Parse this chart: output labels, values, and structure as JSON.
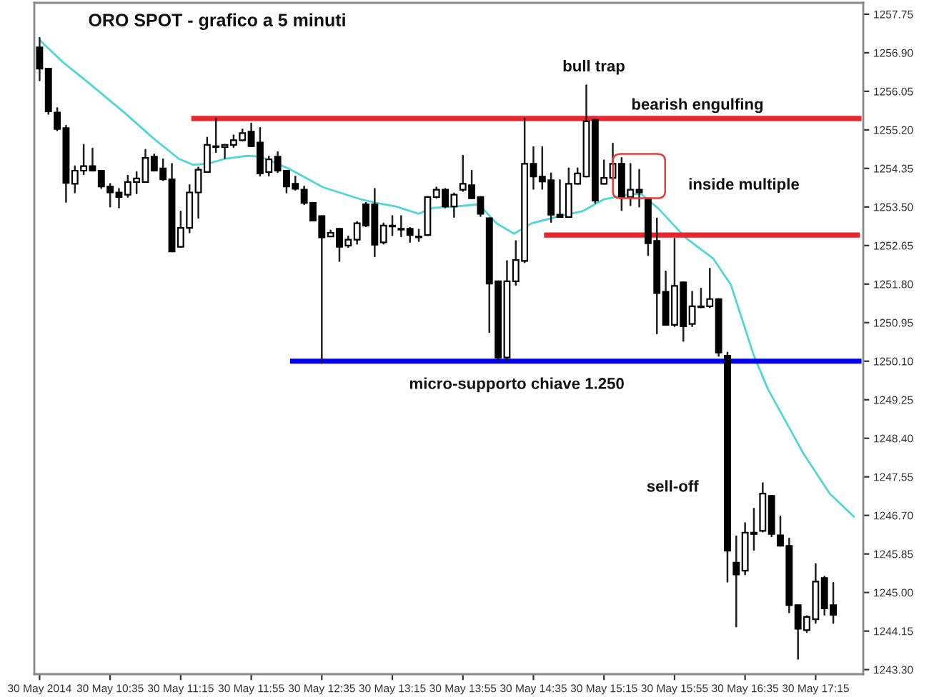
{
  "chart_data": {
    "type": "candlestick",
    "annotations": [
      "bull trap",
      "bearish engulfing",
      "inside multiple",
      "micro-supporto chiave 1.250",
      "sell-off"
    ],
    "title": "ORO SPOT - grafico a 5 minuti",
    "x": [
      "2014-05-30T09:55",
      "2014-05-30T10:00",
      "2014-05-30T10:05",
      "2014-05-30T10:10",
      "2014-05-30T10:15",
      "2014-05-30T10:20",
      "2014-05-30T10:25",
      "2014-05-30T10:30",
      "2014-05-30T10:35",
      "2014-05-30T10:40",
      "2014-05-30T10:45",
      "2014-05-30T10:50",
      "2014-05-30T10:55",
      "2014-05-30T11:00",
      "2014-05-30T11:05",
      "2014-05-30T11:10",
      "2014-05-30T11:15",
      "2014-05-30T11:20",
      "2014-05-30T11:25",
      "2014-05-30T11:30",
      "2014-05-30T11:35",
      "2014-05-30T11:40",
      "2014-05-30T11:45",
      "2014-05-30T11:50",
      "2014-05-30T11:55",
      "2014-05-30T12:00",
      "2014-05-30T12:05",
      "2014-05-30T12:10",
      "2014-05-30T12:15",
      "2014-05-30T12:20",
      "2014-05-30T12:25",
      "2014-05-30T12:30",
      "2014-05-30T12:35",
      "2014-05-30T12:40",
      "2014-05-30T12:45",
      "2014-05-30T12:50",
      "2014-05-30T12:55",
      "2014-05-30T13:00",
      "2014-05-30T13:05",
      "2014-05-30T13:10",
      "2014-05-30T13:15",
      "2014-05-30T13:20",
      "2014-05-30T13:25",
      "2014-05-30T13:30",
      "2014-05-30T13:35",
      "2014-05-30T13:40",
      "2014-05-30T13:45",
      "2014-05-30T13:50",
      "2014-05-30T13:55",
      "2014-05-30T14:00",
      "2014-05-30T14:05",
      "2014-05-30T14:10",
      "2014-05-30T14:15",
      "2014-05-30T14:20",
      "2014-05-30T14:25",
      "2014-05-30T14:30",
      "2014-05-30T14:35",
      "2014-05-30T14:40",
      "2014-05-30T14:45",
      "2014-05-30T14:50",
      "2014-05-30T14:55",
      "2014-05-30T15:00",
      "2014-05-30T15:05",
      "2014-05-30T15:10",
      "2014-05-30T15:15",
      "2014-05-30T15:20",
      "2014-05-30T15:25",
      "2014-05-30T15:30",
      "2014-05-30T15:35",
      "2014-05-30T15:40",
      "2014-05-30T15:45",
      "2014-05-30T15:50",
      "2014-05-30T15:55",
      "2014-05-30T16:00",
      "2014-05-30T16:05",
      "2014-05-30T16:10",
      "2014-05-30T16:15",
      "2014-05-30T16:20",
      "2014-05-30T16:25",
      "2014-05-30T16:30",
      "2014-05-30T16:35",
      "2014-05-30T16:40",
      "2014-05-30T16:45",
      "2014-05-30T16:50",
      "2014-05-30T16:55",
      "2014-05-30T17:00",
      "2014-05-30T17:05",
      "2014-05-30T17:10",
      "2014-05-30T17:15",
      "2014-05-30T17:20",
      "2014-05-30T17:25"
    ],
    "ohlc": [
      [
        1257.02,
        1257.23,
        1256.29,
        1256.55
      ],
      [
        1256.55,
        1256.55,
        1255.55,
        1255.61
      ],
      [
        1255.58,
        1255.68,
        1255.19,
        1255.22
      ],
      [
        1255.24,
        1255.29,
        1253.61,
        1254.03
      ],
      [
        1254.01,
        1254.4,
        1253.82,
        1254.3
      ],
      [
        1254.3,
        1254.87,
        1254.22,
        1254.4
      ],
      [
        1254.4,
        1254.79,
        1254.3,
        1254.3
      ],
      [
        1254.3,
        1254.3,
        1253.92,
        1253.95
      ],
      [
        1253.95,
        1254.01,
        1253.51,
        1253.82
      ],
      [
        1253.82,
        1253.9,
        1253.49,
        1253.72
      ],
      [
        1253.77,
        1254.19,
        1253.72,
        1254.05
      ],
      [
        1254.05,
        1254.27,
        1253.8,
        1254.13
      ],
      [
        1254.05,
        1254.76,
        1254.05,
        1254.58
      ],
      [
        1254.61,
        1254.66,
        1254.3,
        1254.3
      ],
      [
        1254.35,
        1254.55,
        1254.09,
        1254.11
      ],
      [
        1254.11,
        1254.45,
        1252.52,
        1252.52
      ],
      [
        1252.62,
        1253.4,
        1252.62,
        1253.04
      ],
      [
        1253.04,
        1253.98,
        1252.94,
        1253.82
      ],
      [
        1253.82,
        1254.37,
        1253.26,
        1254.32
      ],
      [
        1254.27,
        1255.03,
        1254.27,
        1254.87
      ],
      [
        1254.82,
        1255.45,
        1254.71,
        1254.84
      ],
      [
        1254.82,
        1254.87,
        1254.58,
        1254.87
      ],
      [
        1254.87,
        1255.08,
        1254.82,
        1254.97
      ],
      [
        1254.97,
        1255.21,
        1254.97,
        1255.13
      ],
      [
        1255.16,
        1255.34,
        1254.84,
        1254.84
      ],
      [
        1254.92,
        1255.24,
        1254.19,
        1254.24
      ],
      [
        1254.27,
        1254.61,
        1254.19,
        1254.55
      ],
      [
        1254.61,
        1254.71,
        1254.27,
        1254.3
      ],
      [
        1254.3,
        1254.3,
        1253.82,
        1253.95
      ],
      [
        1254.01,
        1254.17,
        1253.88,
        1253.9
      ],
      [
        1253.88,
        1253.95,
        1253.56,
        1253.59
      ],
      [
        1253.59,
        1253.59,
        1253.2,
        1253.2
      ],
      [
        1253.3,
        1253.3,
        1250.06,
        1252.83
      ],
      [
        1252.85,
        1252.98,
        1252.85,
        1252.93
      ],
      [
        1253.02,
        1253.02,
        1252.31,
        1252.62
      ],
      [
        1252.65,
        1252.85,
        1252.62,
        1252.78
      ],
      [
        1252.78,
        1253.17,
        1252.69,
        1253.14
      ],
      [
        1253.56,
        1253.59,
        1253.07,
        1253.09
      ],
      [
        1253.56,
        1253.9,
        1252.41,
        1252.67
      ],
      [
        1252.72,
        1253.14,
        1252.69,
        1253.09
      ],
      [
        1253.07,
        1253.3,
        1252.88,
        1253.09
      ],
      [
        1253.02,
        1253.3,
        1252.85,
        1253.0
      ],
      [
        1253.02,
        1253.04,
        1252.73,
        1252.88
      ],
      [
        1252.85,
        1253.0,
        1252.75,
        1252.83
      ],
      [
        1252.88,
        1253.72,
        1252.88,
        1253.72
      ],
      [
        1253.72,
        1253.93,
        1253.7,
        1253.88
      ],
      [
        1253.88,
        1253.9,
        1253.49,
        1253.51
      ],
      [
        1253.51,
        1253.8,
        1253.28,
        1253.77
      ],
      [
        1253.88,
        1254.63,
        1253.85,
        1254.01
      ],
      [
        1253.98,
        1254.3,
        1253.69,
        1253.69
      ],
      [
        1253.72,
        1253.72,
        1253.3,
        1253.35
      ],
      [
        1253.25,
        1253.25,
        1250.74,
        1251.81
      ],
      [
        1251.86,
        1251.86,
        1250.12,
        1250.18
      ],
      [
        1250.18,
        1252.31,
        1250.12,
        1251.86
      ],
      [
        1251.86,
        1252.75,
        1251.78,
        1252.33
      ],
      [
        1252.31,
        1255.45,
        1252.28,
        1254.45
      ],
      [
        1254.45,
        1254.82,
        1253.9,
        1254.17
      ],
      [
        1254.17,
        1254.82,
        1253.9,
        1254.06
      ],
      [
        1254.09,
        1254.24,
        1253.17,
        1253.33
      ],
      [
        1253.33,
        1254.09,
        1253.28,
        1253.28
      ],
      [
        1253.28,
        1254.35,
        1253.28,
        1254.01
      ],
      [
        1254.01,
        1254.35,
        1254.01,
        1254.24
      ],
      [
        1254.17,
        1256.18,
        1254.17,
        1255.39
      ],
      [
        1255.42,
        1255.42,
        1253.59,
        1253.64
      ],
      [
        1254.01,
        1254.53,
        1254.01,
        1254.14
      ],
      [
        1254.14,
        1254.9,
        1254.11,
        1254.45
      ],
      [
        1254.45,
        1254.58,
        1253.43,
        1253.72
      ],
      [
        1253.72,
        1254.45,
        1253.54,
        1253.88
      ],
      [
        1253.88,
        1254.32,
        1253.51,
        1253.82
      ],
      [
        1253.69,
        1253.69,
        1252.44,
        1252.7
      ],
      [
        1252.75,
        1253.25,
        1250.71,
        1251.6
      ],
      [
        1251.63,
        1252.08,
        1250.9,
        1250.9
      ],
      [
        1250.9,
        1252.8,
        1250.87,
        1251.76
      ],
      [
        1251.84,
        1251.84,
        1250.55,
        1250.87
      ],
      [
        1250.92,
        1251.63,
        1250.87,
        1251.31
      ],
      [
        1251.29,
        1251.7,
        1251.29,
        1251.31
      ],
      [
        1251.31,
        1252.14,
        1251.29,
        1251.47
      ],
      [
        1251.47,
        1251.47,
        1250.22,
        1250.29
      ],
      [
        1250.22,
        1250.29,
        1245.24,
        1245.92
      ],
      [
        1245.66,
        1246.24,
        1244.25,
        1245.4
      ],
      [
        1245.48,
        1246.53,
        1245.4,
        1246.32
      ],
      [
        1246.29,
        1246.85,
        1245.94,
        1246.32
      ],
      [
        1246.36,
        1247.41,
        1246.34,
        1247.18
      ],
      [
        1247.13,
        1247.13,
        1246.24,
        1246.29
      ],
      [
        1246.26,
        1246.68,
        1246.03,
        1246.03
      ],
      [
        1246.03,
        1246.19,
        1244.56,
        1244.72
      ],
      [
        1244.72,
        1244.72,
        1243.54,
        1244.2
      ],
      [
        1244.17,
        1244.48,
        1244.13,
        1244.46
      ],
      [
        1244.41,
        1245.63,
        1244.33,
        1245.24
      ],
      [
        1245.32,
        1245.35,
        1244.51,
        1244.65
      ],
      [
        1244.72,
        1245.21,
        1244.33,
        1244.51
      ]
    ],
    "series": [
      {
        "type": "line",
        "color": "#4fd6d6",
        "x": [
          "2014-05-30T09:55",
          "2014-05-30T10:08",
          "2014-05-30T10:23",
          "2014-05-30T10:44",
          "2014-05-30T10:59",
          "2014-05-30T11:14",
          "2014-05-30T11:22",
          "2014-05-30T11:30",
          "2014-05-30T11:40",
          "2014-05-30T11:53",
          "2014-05-30T12:00",
          "2014-05-30T12:16",
          "2014-05-30T12:36",
          "2014-05-30T12:57",
          "2014-05-30T13:07",
          "2014-05-30T13:17",
          "2014-05-30T13:30",
          "2014-05-30T13:38",
          "2014-05-30T13:51",
          "2014-05-30T14:04",
          "2014-05-30T14:14",
          "2014-05-30T14:24",
          "2014-05-30T14:34",
          "2014-05-30T14:50",
          "2014-05-30T15:03",
          "2014-05-30T15:15",
          "2014-05-30T15:28",
          "2014-05-30T15:36",
          "2014-05-30T15:46",
          "2014-05-30T16:01",
          "2014-05-30T16:17",
          "2014-05-30T16:27",
          "2014-05-30T16:40",
          "2014-05-30T16:48",
          "2014-05-30T17:08",
          "2014-05-30T17:23",
          "2014-05-30T17:37"
        ],
        "values": [
          1257.18,
          1256.7,
          1256.23,
          1255.55,
          1255.03,
          1254.56,
          1254.43,
          1254.45,
          1254.56,
          1254.63,
          1254.61,
          1254.35,
          1253.93,
          1253.67,
          1253.58,
          1253.51,
          1253.35,
          1253.48,
          1253.51,
          1253.56,
          1253.14,
          1252.91,
          1253.14,
          1253.3,
          1253.41,
          1253.67,
          1253.77,
          1253.79,
          1253.46,
          1252.83,
          1252.36,
          1251.78,
          1250.22,
          1249.48,
          1248.07,
          1247.18,
          1246.66
        ]
      },
      {
        "type": "line",
        "color": "#e8262d",
        "x": [
          "2014-05-30T11:21",
          "2014-05-30T17:41"
        ],
        "values": [
          1255.45,
          1255.45
        ]
      },
      {
        "type": "line",
        "color": "#0000ee",
        "x": [
          "2014-05-30T12:17",
          "2014-05-30T17:41"
        ],
        "values": [
          1250.1,
          1250.1
        ]
      },
      {
        "type": "line",
        "color": "#e8262d",
        "x": [
          "2014-05-30T14:41",
          "2014-05-30T17:40"
        ],
        "values": [
          1252.88,
          1252.88
        ]
      }
    ],
    "xlim": [
      "2014-05-30T09:52",
      "2014-05-30T17:42"
    ],
    "ylim": [
      1243.2,
      1258.0
    ],
    "xticks": [
      {
        "value": "2014-05-30T09:55",
        "label": "30 May 2014"
      },
      {
        "value": "2014-05-30T10:35",
        "label": "30 May 10:35"
      },
      {
        "value": "2014-05-30T11:15",
        "label": "30 May 11:15"
      },
      {
        "value": "2014-05-30T11:55",
        "label": "30 May 11:55"
      },
      {
        "value": "2014-05-30T12:35",
        "label": "30 May 12:35"
      },
      {
        "value": "2014-05-30T13:15",
        "label": "30 May 13:15"
      },
      {
        "value": "2014-05-30T13:55",
        "label": "30 May 13:55"
      },
      {
        "value": "2014-05-30T14:35",
        "label": "30 May 14:35"
      },
      {
        "value": "2014-05-30T15:15",
        "label": "30 May 15:15"
      },
      {
        "value": "2014-05-30T15:55",
        "label": "30 May 15:55"
      },
      {
        "value": "2014-05-30T16:35",
        "label": "30 May 16:35"
      },
      {
        "value": "2014-05-30T17:15",
        "label": "30 May 17:15"
      }
    ],
    "yticks": [
      {
        "value": 1257.75,
        "label": "1257.75"
      },
      {
        "value": 1256.9,
        "label": "1256.90"
      },
      {
        "value": 1256.05,
        "label": "1256.05"
      },
      {
        "value": 1255.2,
        "label": "1255.20"
      },
      {
        "value": 1254.35,
        "label": "1254.35"
      },
      {
        "value": 1253.5,
        "label": "1253.50"
      },
      {
        "value": 1252.65,
        "label": "1252.65"
      },
      {
        "value": 1251.8,
        "label": "1251.80"
      },
      {
        "value": 1250.95,
        "label": "1250.95"
      },
      {
        "value": 1250.1,
        "label": "1250.10"
      },
      {
        "value": 1249.25,
        "label": "1249.25"
      },
      {
        "value": 1248.4,
        "label": "1248.40"
      },
      {
        "value": 1247.55,
        "label": "1247.55"
      },
      {
        "value": 1246.7,
        "label": "1246.70"
      },
      {
        "value": 1245.85,
        "label": "1245.85"
      },
      {
        "value": 1245.0,
        "label": "1245.00"
      },
      {
        "value": 1244.15,
        "label": "1244.15"
      },
      {
        "value": 1243.3,
        "label": "1243.30"
      }
    ]
  }
}
